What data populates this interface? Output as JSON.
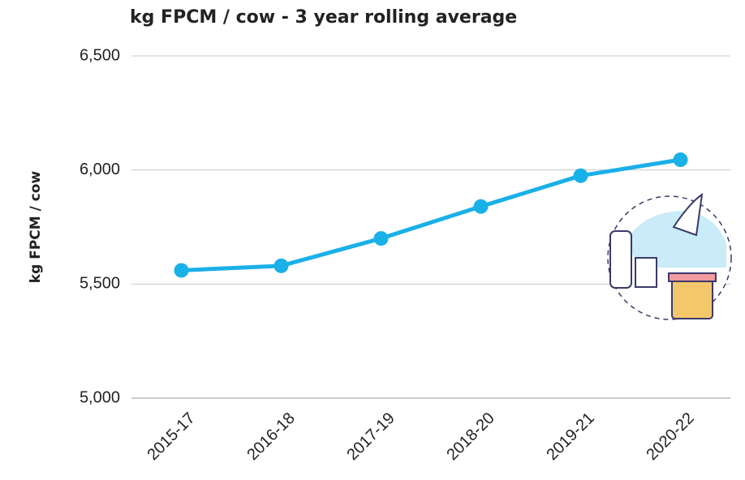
{
  "chart_data": {
    "type": "line",
    "title": "kg FPCM / cow - 3 year rolling average",
    "y_label": "kg FPCM / cow",
    "categories": [
      "2015-17",
      "2016-18",
      "2017-19",
      "2018-20",
      "2019-21",
      "2020-22"
    ],
    "series": [
      {
        "name": "kg FPCM / cow",
        "color": "#1ab0e8",
        "values": [
          5560,
          5580,
          5700,
          5840,
          5975,
          6045
        ]
      }
    ],
    "ylim": [
      5000,
      6500
    ],
    "yticks": [
      {
        "value": 5000,
        "label": "5,000"
      },
      {
        "value": 5500,
        "label": "5,500"
      },
      {
        "value": 6000,
        "label": "6,000"
      },
      {
        "value": 6500,
        "label": "6,500"
      }
    ],
    "grid": true
  }
}
